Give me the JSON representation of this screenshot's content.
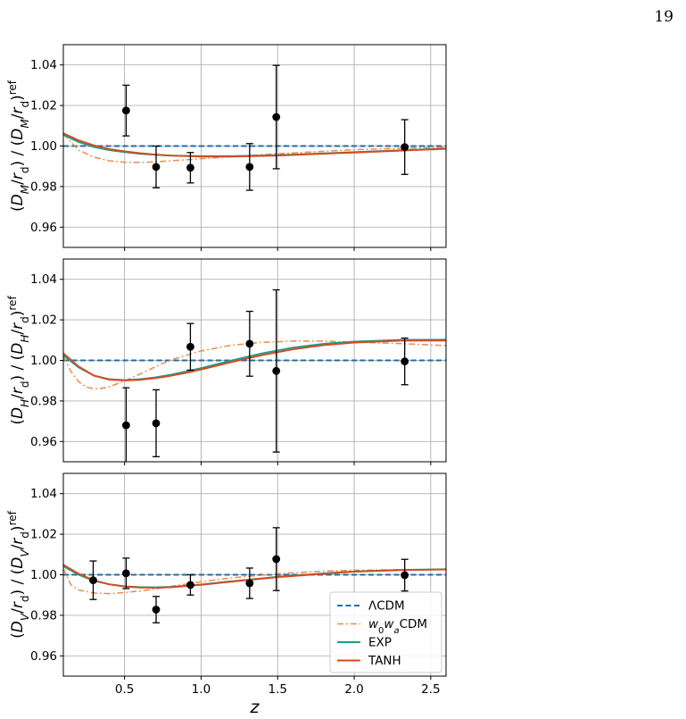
{
  "page": {
    "number": "19"
  },
  "colors": {
    "LCDM": "#1f6fa8",
    "w0waCDM": "#ef8a4a",
    "EXP": "#1a9e8a",
    "TANH": "#d9481e",
    "data": "#000000",
    "grid": "#b0b0b0"
  },
  "chart_data": [
    {
      "type": "line",
      "panel": "DM",
      "ylabel": "(D_M/r_d) / (D_M/r_d)^ref",
      "ylim": [
        0.95,
        1.05
      ],
      "yticks": [
        "0.96",
        "0.98",
        "1.00",
        "1.02",
        "1.04"
      ],
      "xlim": [
        0.1,
        2.6
      ],
      "xticks": [
        "0.5",
        "1.0",
        "1.5",
        "2.0",
        "2.5"
      ],
      "grid": true,
      "series": [
        {
          "name": "ΛCDM",
          "style": "dashed",
          "x": [
            0.1,
            2.6
          ],
          "y": [
            1.0,
            1.0
          ]
        },
        {
          "name": "w0waCDM",
          "style": "dashdot",
          "x": [
            0.1,
            0.2,
            0.3,
            0.4,
            0.5,
            0.6,
            0.7,
            0.8,
            1.0,
            1.2,
            1.5,
            2.0,
            2.5,
            2.6
          ],
          "y": [
            1.006,
            0.998,
            0.9945,
            0.9927,
            0.992,
            0.9919,
            0.9922,
            0.9927,
            0.9937,
            0.9948,
            0.9962,
            0.9982,
            0.9993,
            0.9995
          ]
        },
        {
          "name": "EXP",
          "style": "solid",
          "x": [
            0.1,
            0.2,
            0.3,
            0.4,
            0.5,
            0.6,
            0.7,
            0.8,
            1.0,
            1.2,
            1.5,
            2.0,
            2.5,
            2.6
          ],
          "y": [
            1.0055,
            1.002,
            0.9995,
            0.998,
            0.997,
            0.9962,
            0.9957,
            0.9953,
            0.995,
            0.995,
            0.9955,
            0.997,
            0.9985,
            0.9988
          ]
        },
        {
          "name": "TANH",
          "style": "solid",
          "x": [
            0.1,
            0.2,
            0.3,
            0.4,
            0.5,
            0.6,
            0.7,
            0.8,
            1.0,
            1.2,
            1.5,
            2.0,
            2.5,
            2.6
          ],
          "y": [
            1.0063,
            1.0028,
            1.0003,
            0.9985,
            0.9974,
            0.9965,
            0.9958,
            0.9953,
            0.9948,
            0.9948,
            0.9953,
            0.9968,
            0.9983,
            0.9986
          ]
        }
      ],
      "points": [
        {
          "x": 0.51,
          "y": 1.0175,
          "err_low": 0.0125,
          "err_high": 0.0125
        },
        {
          "x": 0.706,
          "y": 0.9897,
          "err_low": 0.0103,
          "err_high": 0.0103
        },
        {
          "x": 0.93,
          "y": 0.9893,
          "err_low": 0.0075,
          "err_high": 0.0075
        },
        {
          "x": 1.317,
          "y": 0.9897,
          "err_low": 0.0115,
          "err_high": 0.0115
        },
        {
          "x": 1.491,
          "y": 1.0143,
          "err_low": 0.0255,
          "err_high": 0.0255
        },
        {
          "x": 2.33,
          "y": 0.9995,
          "err_low": 0.0135,
          "err_high": 0.0135
        }
      ]
    },
    {
      "type": "line",
      "panel": "DH",
      "ylabel": "(D_H/r_d) / (D_H/r_d)^ref",
      "ylim": [
        0.95,
        1.05
      ],
      "yticks": [
        "0.96",
        "0.98",
        "1.00",
        "1.02",
        "1.04"
      ],
      "xlim": [
        0.1,
        2.6
      ],
      "xticks": [
        "0.5",
        "1.0",
        "1.5",
        "2.0",
        "2.5"
      ],
      "grid": true,
      "series": [
        {
          "name": "ΛCDM",
          "style": "dashed",
          "x": [
            0.1,
            2.6
          ],
          "y": [
            1.0,
            1.0
          ]
        },
        {
          "name": "w0waCDM",
          "style": "dashdot",
          "x": [
            0.1,
            0.15,
            0.2,
            0.25,
            0.3,
            0.35,
            0.4,
            0.5,
            0.6,
            0.7,
            0.8,
            1.0,
            1.2,
            1.4,
            1.6,
            1.8,
            2.0,
            2.3,
            2.6
          ],
          "y": [
            1.002,
            0.9945,
            0.9895,
            0.9868,
            0.986,
            0.9862,
            0.987,
            0.9898,
            0.9932,
            0.9968,
            1.0002,
            1.0047,
            1.0075,
            1.0089,
            1.0095,
            1.0095,
            1.009,
            1.0083,
            1.0073
          ]
        },
        {
          "name": "EXP",
          "style": "solid",
          "x": [
            0.1,
            0.2,
            0.3,
            0.4,
            0.5,
            0.6,
            0.7,
            0.8,
            0.9,
            1.0,
            1.2,
            1.4,
            1.6,
            1.8,
            2.0,
            2.3,
            2.6
          ],
          "y": [
            1.0025,
            0.9965,
            0.9925,
            0.9907,
            0.9903,
            0.9907,
            0.9916,
            0.9929,
            0.9945,
            0.9962,
            1.0,
            1.0035,
            1.0063,
            1.0082,
            1.0093,
            1.0101,
            1.0102
          ]
        },
        {
          "name": "TANH",
          "style": "solid",
          "x": [
            0.1,
            0.2,
            0.3,
            0.4,
            0.5,
            0.6,
            0.7,
            0.8,
            0.9,
            1.0,
            1.2,
            1.4,
            1.6,
            1.8,
            2.0,
            2.3,
            2.6
          ],
          "y": [
            1.0035,
            0.997,
            0.9925,
            0.9905,
            0.9901,
            0.9904,
            0.9912,
            0.9924,
            0.9938,
            0.9955,
            0.9992,
            1.0026,
            1.0055,
            1.0075,
            1.0088,
            1.0097,
            1.0098
          ]
        }
      ],
      "points": [
        {
          "x": 0.51,
          "y": 0.968,
          "err_low": 0.0185,
          "err_high": 0.0185
        },
        {
          "x": 0.706,
          "y": 0.969,
          "err_low": 0.0165,
          "err_high": 0.0165
        },
        {
          "x": 0.93,
          "y": 1.0067,
          "err_low": 0.0115,
          "err_high": 0.0115
        },
        {
          "x": 1.317,
          "y": 1.0082,
          "err_low": 0.016,
          "err_high": 0.016
        },
        {
          "x": 1.491,
          "y": 0.9948,
          "err_low": 0.04,
          "err_high": 0.04
        },
        {
          "x": 2.33,
          "y": 0.9995,
          "err_low": 0.0115,
          "err_high": 0.0115
        }
      ]
    },
    {
      "type": "line",
      "panel": "DV",
      "ylabel": "(D_V/r_d) / (D_V/r_d)^ref",
      "ylim": [
        0.95,
        1.05
      ],
      "yticks": [
        "0.96",
        "0.98",
        "1.00",
        "1.02",
        "1.04"
      ],
      "xlim": [
        0.1,
        2.6
      ],
      "xticks": [
        "0.5",
        "1.0",
        "1.5",
        "2.0",
        "2.5"
      ],
      "xlabel": "z",
      "grid": true,
      "legend": {
        "placement": "bottom-right",
        "entries": [
          "ΛCDM",
          "w0waCDM",
          "EXP",
          "TANH"
        ]
      },
      "series": [
        {
          "name": "ΛCDM",
          "style": "dashed",
          "x": [
            0.1,
            2.6
          ],
          "y": [
            1.0,
            1.0
          ]
        },
        {
          "name": "w0waCDM",
          "style": "dashdot",
          "x": [
            0.1,
            0.15,
            0.2,
            0.3,
            0.4,
            0.5,
            0.6,
            0.7,
            0.8,
            1.0,
            1.2,
            1.5,
            1.8,
            2.0,
            2.3,
            2.6
          ],
          "y": [
            1.003,
            0.995,
            0.9925,
            0.991,
            0.9907,
            0.9912,
            0.992,
            0.993,
            0.9942,
            0.9965,
            0.9985,
            1.0005,
            1.0018,
            1.0022,
            1.0025,
            1.0026
          ]
        },
        {
          "name": "EXP",
          "style": "solid",
          "x": [
            0.1,
            0.2,
            0.3,
            0.4,
            0.5,
            0.6,
            0.7,
            0.8,
            1.0,
            1.2,
            1.5,
            1.8,
            2.0,
            2.3,
            2.6
          ],
          "y": [
            1.0042,
            1.0,
            0.997,
            0.9953,
            0.9943,
            0.9939,
            0.9938,
            0.994,
            0.9952,
            0.9968,
            0.999,
            1.0007,
            1.0016,
            1.0024,
            1.0027
          ]
        },
        {
          "name": "TANH",
          "style": "solid",
          "x": [
            0.1,
            0.2,
            0.3,
            0.4,
            0.5,
            0.6,
            0.7,
            0.8,
            1.0,
            1.2,
            1.5,
            1.8,
            2.0,
            2.3,
            2.6
          ],
          "y": [
            1.0049,
            1.0005,
            0.9972,
            0.9953,
            0.9942,
            0.9937,
            0.9936,
            0.9938,
            0.995,
            0.9966,
            0.9988,
            1.0005,
            1.0015,
            1.0023,
            1.0026
          ]
        }
      ],
      "points": [
        {
          "x": 0.295,
          "y": 0.9973,
          "err_low": 0.0095,
          "err_high": 0.0095
        },
        {
          "x": 0.51,
          "y": 1.0007,
          "err_low": 0.0075,
          "err_high": 0.0075
        },
        {
          "x": 0.706,
          "y": 0.9828,
          "err_low": 0.0065,
          "err_high": 0.0065
        },
        {
          "x": 0.93,
          "y": 0.995,
          "err_low": 0.005,
          "err_high": 0.005
        },
        {
          "x": 1.317,
          "y": 0.9958,
          "err_low": 0.0075,
          "err_high": 0.0075
        },
        {
          "x": 1.491,
          "y": 1.0077,
          "err_low": 0.0155,
          "err_high": 0.0155
        },
        {
          "x": 2.33,
          "y": 0.9998,
          "err_low": 0.0078,
          "err_high": 0.0078
        }
      ]
    }
  ]
}
